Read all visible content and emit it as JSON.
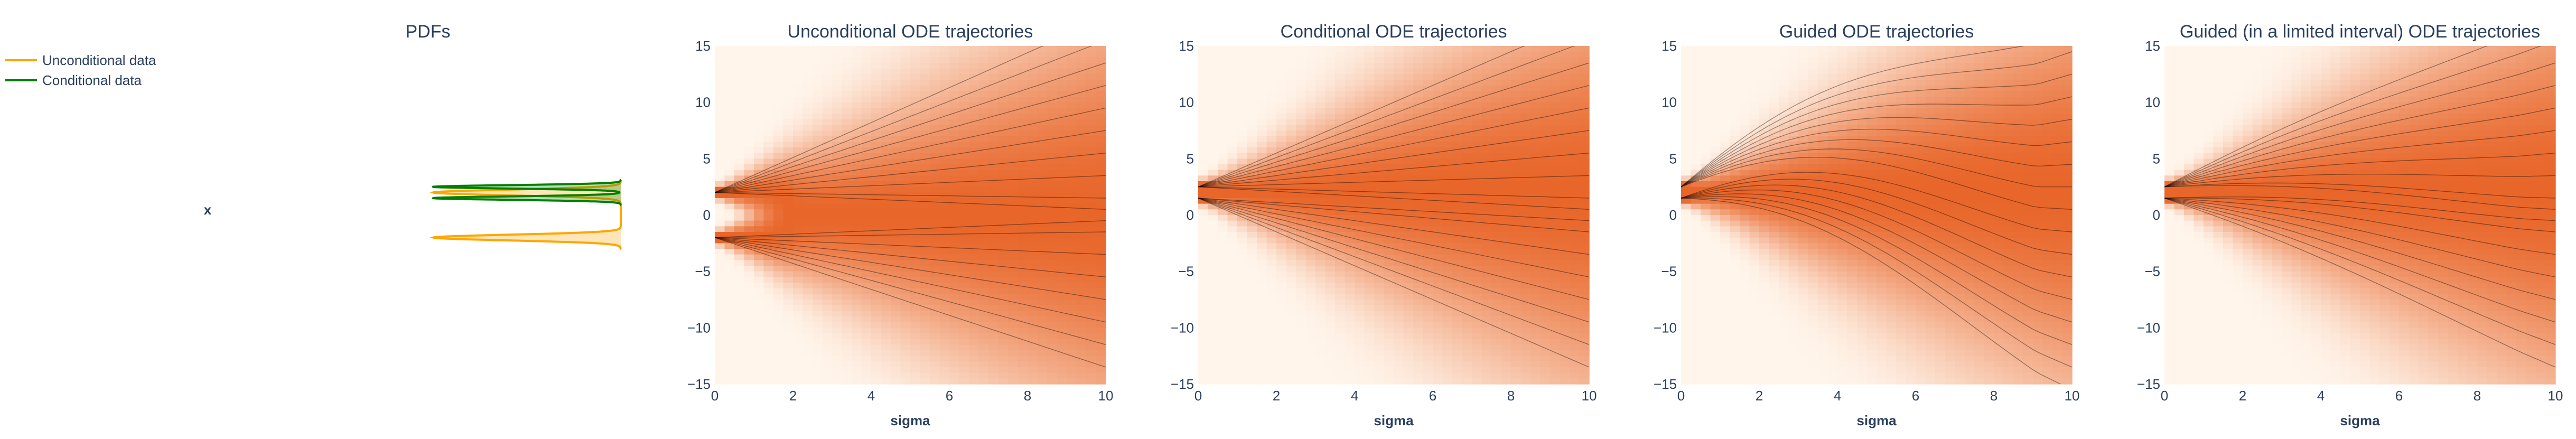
{
  "colors": {
    "unconditional": "#FFA500",
    "conditional": "#008000",
    "heat_low": "#FFF5EB",
    "heat_high": "#E8662A",
    "trajectory": "#000000",
    "text": "#2a3f5f"
  },
  "legend": {
    "placement": "top-left",
    "items": [
      {
        "label": "Unconditional data",
        "color": "#FFA500"
      },
      {
        "label": "Conditional data",
        "color": "#008000"
      }
    ]
  },
  "chart_data": [
    {
      "type": "area",
      "title": "PDFs",
      "xlabel": "",
      "ylabel": "x",
      "ylim": [
        -15,
        15
      ],
      "orientation": "horizontal",
      "series": [
        {
          "name": "Unconditional data",
          "modes": [
            {
              "mu": -2,
              "weight": 0.5
            },
            {
              "mu": 2,
              "weight": 0.5
            }
          ],
          "sigma": 0.25
        },
        {
          "name": "Conditional data",
          "modes": [
            {
              "mu": 1.5,
              "weight": 0.5
            },
            {
              "mu": 2.5,
              "weight": 0.5
            }
          ],
          "sigma": 0.15
        }
      ]
    },
    {
      "type": "heatmap",
      "title": "Unconditional ODE trajectories",
      "xlabel": "sigma",
      "ylabel": "",
      "xlim": [
        0,
        10
      ],
      "ylim": [
        -15,
        15
      ],
      "x_ticks": [
        "0",
        "2",
        "4",
        "6",
        "8",
        "10"
      ],
      "y_ticks": [
        "15",
        "10",
        "5",
        "0",
        "−5",
        "−10",
        "−15"
      ],
      "modes": [
        -2,
        2
      ],
      "guidance": 0,
      "trajectory_ends": [
        -13.5,
        -11.5,
        -9.5,
        -7.5,
        -5.5,
        -3.5,
        -1.5,
        -0.5,
        0.5,
        1.5,
        3.5,
        5.5,
        7.5,
        9.5,
        11.5,
        13.5,
        15.5,
        17.5
      ]
    },
    {
      "type": "heatmap",
      "title": "Conditional ODE trajectories",
      "xlabel": "sigma",
      "ylabel": "",
      "xlim": [
        0,
        10
      ],
      "ylim": [
        -15,
        15
      ],
      "x_ticks": [
        "0",
        "2",
        "4",
        "6",
        "8",
        "10"
      ],
      "y_ticks": [
        "15",
        "10",
        "5",
        "0",
        "−5",
        "−10",
        "−15"
      ],
      "modes": [
        1.5,
        2.5
      ],
      "guidance": 0,
      "trajectory_ends": [
        -13.5,
        -11.5,
        -9.5,
        -7.5,
        -5.5,
        -3.5,
        -1.5,
        -0.5,
        0.5,
        1.5,
        3.5,
        5.5,
        7.5,
        9.5,
        11.5,
        13.5,
        15.5,
        17.5
      ]
    },
    {
      "type": "heatmap",
      "title": "Guided ODE trajectories",
      "xlabel": "sigma",
      "ylabel": "",
      "xlim": [
        0,
        10
      ],
      "ylim": [
        -15,
        15
      ],
      "x_ticks": [
        "0",
        "2",
        "4",
        "6",
        "8",
        "10"
      ],
      "y_ticks": [
        "15",
        "10",
        "5",
        "0",
        "−5",
        "−10",
        "−15"
      ],
      "modes": [
        1.5,
        2.5
      ],
      "guidance": 1,
      "trajectory_ends": [
        -15.5,
        -13.5,
        -11.5,
        -9.5,
        -7.5,
        -5.5,
        -3.5,
        -1.5,
        0.5,
        2.5,
        4.5,
        6.5,
        8.5,
        10.5,
        12.5,
        14.5,
        16.5
      ]
    },
    {
      "type": "heatmap",
      "title": "Guided (in a limited interval) ODE trajectories",
      "xlabel": "sigma",
      "ylabel": "",
      "xlim": [
        0,
        10
      ],
      "ylim": [
        -15,
        15
      ],
      "x_ticks": [
        "0",
        "2",
        "4",
        "6",
        "8",
        "10"
      ],
      "y_ticks": [
        "15",
        "10",
        "5",
        "0",
        "−5",
        "−10",
        "−15"
      ],
      "modes": [
        1.5,
        2.5
      ],
      "guidance": 0.2,
      "trajectory_ends": [
        -13.5,
        -11.5,
        -9.5,
        -7.5,
        -5.5,
        -3.5,
        -1.5,
        -0.5,
        0.5,
        1.5,
        3.5,
        5.5,
        7.5,
        9.5,
        11.5,
        13.5,
        15.5,
        17.5
      ]
    }
  ]
}
